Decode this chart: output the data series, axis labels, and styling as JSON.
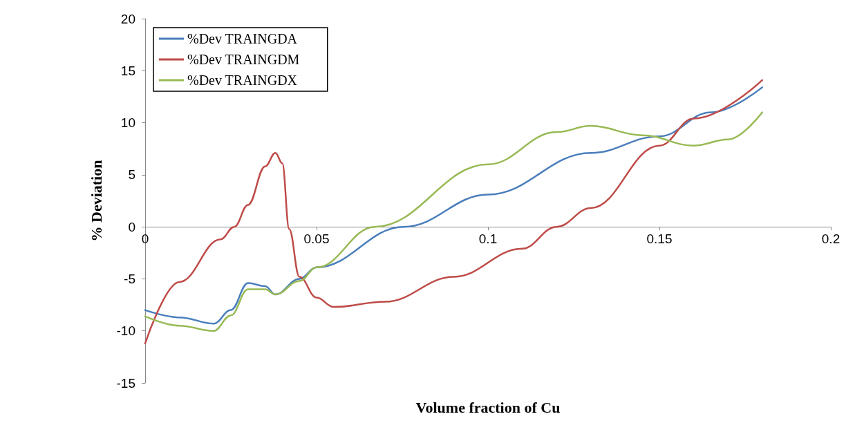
{
  "chart_data": {
    "type": "line",
    "xlabel": "Volume fraction of Cu",
    "ylabel": "% Deviation",
    "xlim": [
      0,
      0.2
    ],
    "xticks": [
      0,
      0.05,
      0.1,
      0.15,
      0.2
    ],
    "ylim": [
      -15,
      20
    ],
    "yticks": [
      -15,
      -10,
      -5,
      0,
      5,
      10,
      15,
      20
    ],
    "grid": false,
    "legend": "top left",
    "marker": "none",
    "line_style": "solid",
    "series": [
      {
        "name": "%Dev TRAINGDA",
        "color": "#4a7ebb",
        "x": [
          0,
          0.01,
          0.02,
          0.025,
          0.03,
          0.035,
          0.038,
          0.045,
          0.05,
          0.0754,
          0.1,
          0.13,
          0.15,
          0.165,
          0.18
        ],
        "values": [
          -8.0,
          -8.7,
          -9.3,
          -8.0,
          -5.4,
          -5.7,
          -6.5,
          -5.0,
          -3.9,
          0.0,
          3.1,
          7.1,
          8.7,
          11.0,
          13.4
        ]
      },
      {
        "name": "%Dev TRAINGDM",
        "color": "#be4b48",
        "x": [
          0,
          0.01,
          0.022,
          0.026,
          0.03,
          0.035,
          0.038,
          0.04,
          0.042,
          0.045,
          0.05,
          0.055,
          0.07,
          0.09,
          0.11,
          0.12,
          0.13,
          0.15,
          0.16,
          0.18
        ],
        "values": [
          -11.2,
          -5.3,
          -1.2,
          0.0,
          2.1,
          5.8,
          7.1,
          6.1,
          -0.2,
          -4.8,
          -6.8,
          -7.7,
          -7.2,
          -4.8,
          -2.1,
          0.0,
          1.8,
          7.8,
          10.4,
          14.1
        ]
      },
      {
        "name": "%Dev TRAINGDX",
        "color": "#98b954",
        "x": [
          0,
          0.01,
          0.02,
          0.025,
          0.03,
          0.035,
          0.038,
          0.045,
          0.05,
          0.067,
          0.1,
          0.12,
          0.13,
          0.145,
          0.16,
          0.17,
          0.18
        ],
        "values": [
          -8.6,
          -9.5,
          -10.0,
          -8.5,
          -6.0,
          -6.0,
          -6.5,
          -5.2,
          -3.9,
          0.0,
          6.0,
          9.1,
          9.7,
          8.8,
          7.8,
          8.4,
          11.0
        ]
      }
    ]
  }
}
